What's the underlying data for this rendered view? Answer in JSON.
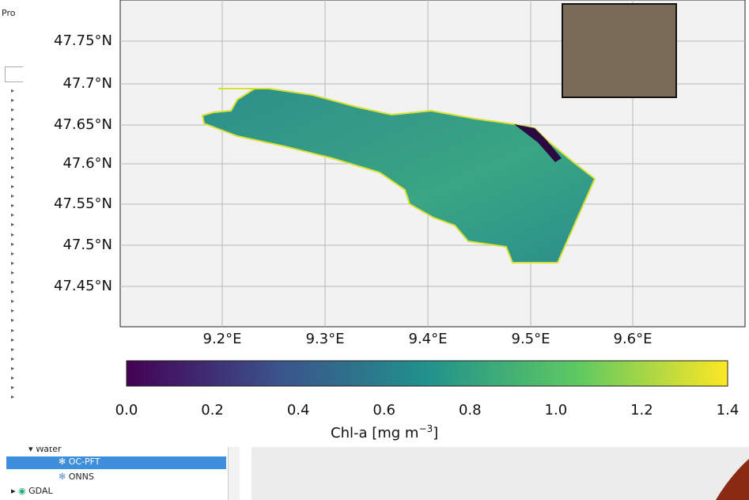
{
  "sidebar": {
    "header": "Pro",
    "tree": [
      {
        "label": "Water",
        "children": [
          "OC-PFT",
          "ONNS"
        ]
      },
      {
        "label": "GDAL"
      }
    ],
    "selected": "OC-PFT"
  },
  "figure": {
    "y_tick_labels": [
      "47.75°N",
      "47.7°N",
      "47.65°N",
      "47.6°N",
      "47.55°N",
      "47.5°N",
      "47.45°N"
    ],
    "x_tick_labels": [
      "9.2°E",
      "9.3°E",
      "9.4°E",
      "9.5°E",
      "9.6°E"
    ],
    "colorbar": {
      "tick_labels": [
        "0.0",
        "0.2",
        "0.4",
        "0.6",
        "0.8",
        "1.0",
        "1.2",
        "1.4"
      ],
      "label": "Chl-a [mg m",
      "label_exponent": "−3",
      "label_end": "]"
    }
  }
}
